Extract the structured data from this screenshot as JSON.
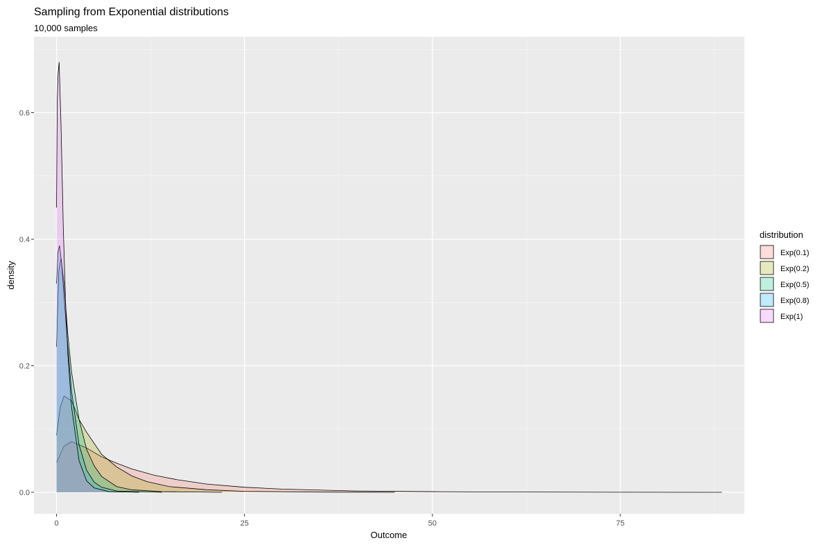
{
  "chart_data": {
    "type": "area",
    "title": "Sampling from Exponential distributions",
    "subtitle": "10,000 samples",
    "xlabel": "Outcome",
    "ylabel": "density",
    "xlim": [
      -3,
      91.5
    ],
    "ylim": [
      -0.034,
      0.72
    ],
    "x_ticks": [
      0,
      25,
      50,
      75
    ],
    "x_tick_labels": [
      "0",
      "25",
      "50",
      "75"
    ],
    "y_ticks": [
      0.0,
      0.2,
      0.4,
      0.6
    ],
    "y_tick_labels": [
      "0.0",
      "0.2",
      "0.4",
      "0.6"
    ],
    "grid": true,
    "legend_title": "distribution",
    "legend_position": "right",
    "series": [
      {
        "name": "Exp(0.1)",
        "rate": 0.1,
        "x_max": 88.5,
        "fill": "#F8766D",
        "points": [
          [
            0,
            0.047
          ],
          [
            1,
            0.073
          ],
          [
            2,
            0.08
          ],
          [
            4,
            0.07
          ],
          [
            6,
            0.056
          ],
          [
            8,
            0.046
          ],
          [
            10,
            0.037
          ],
          [
            13,
            0.027
          ],
          [
            16,
            0.02
          ],
          [
            20,
            0.013
          ],
          [
            25,
            0.008
          ],
          [
            30,
            0.005
          ],
          [
            40,
            0.002
          ],
          [
            50,
            0.001
          ],
          [
            60,
            0.0004
          ],
          [
            75,
            0.0001
          ],
          [
            88.5,
            0.0
          ]
        ]
      },
      {
        "name": "Exp(0.2)",
        "rate": 0.2,
        "x_max": 45,
        "fill": "#A3A500",
        "points": [
          [
            0,
            0.09
          ],
          [
            0.5,
            0.135
          ],
          [
            1,
            0.152
          ],
          [
            2,
            0.145
          ],
          [
            3,
            0.115
          ],
          [
            4,
            0.095
          ],
          [
            6,
            0.06
          ],
          [
            8,
            0.04
          ],
          [
            10,
            0.026
          ],
          [
            12,
            0.017
          ],
          [
            15,
            0.009
          ],
          [
            20,
            0.004
          ],
          [
            25,
            0.0015
          ],
          [
            35,
            0.0003
          ],
          [
            45,
            0.0
          ]
        ]
      },
      {
        "name": "Exp(0.5)",
        "rate": 0.5,
        "x_max": 22,
        "fill": "#00BF7D",
        "points": [
          [
            0,
            0.23
          ],
          [
            0.3,
            0.35
          ],
          [
            0.6,
            0.37
          ],
          [
            1,
            0.33
          ],
          [
            1.5,
            0.25
          ],
          [
            2,
            0.19
          ],
          [
            3,
            0.115
          ],
          [
            4,
            0.068
          ],
          [
            5,
            0.042
          ],
          [
            6,
            0.025
          ],
          [
            8,
            0.009
          ],
          [
            10,
            0.004
          ],
          [
            14,
            0.001
          ],
          [
            22,
            0.0
          ]
        ]
      },
      {
        "name": "Exp(0.8)",
        "rate": 0.8,
        "x_max": 14,
        "fill": "#00B0F6",
        "points": [
          [
            0,
            0.33
          ],
          [
            0.2,
            0.38
          ],
          [
            0.4,
            0.39
          ],
          [
            0.7,
            0.36
          ],
          [
            1,
            0.31
          ],
          [
            1.5,
            0.23
          ],
          [
            2,
            0.16
          ],
          [
            3,
            0.075
          ],
          [
            4,
            0.035
          ],
          [
            5,
            0.016
          ],
          [
            6,
            0.008
          ],
          [
            8,
            0.002
          ],
          [
            14,
            0.0
          ]
        ]
      },
      {
        "name": "Exp(1)",
        "rate": 1.0,
        "x_max": 11,
        "fill": "#E76BF3",
        "points": [
          [
            0,
            0.45
          ],
          [
            0.1,
            0.62
          ],
          [
            0.2,
            0.66
          ],
          [
            0.35,
            0.68
          ],
          [
            0.6,
            0.58
          ],
          [
            0.9,
            0.42
          ],
          [
            1.2,
            0.3
          ],
          [
            1.5,
            0.22
          ],
          [
            2,
            0.135
          ],
          [
            3,
            0.05
          ],
          [
            4,
            0.018
          ],
          [
            5,
            0.007
          ],
          [
            7,
            0.001
          ],
          [
            11,
            0.0
          ]
        ]
      }
    ]
  }
}
